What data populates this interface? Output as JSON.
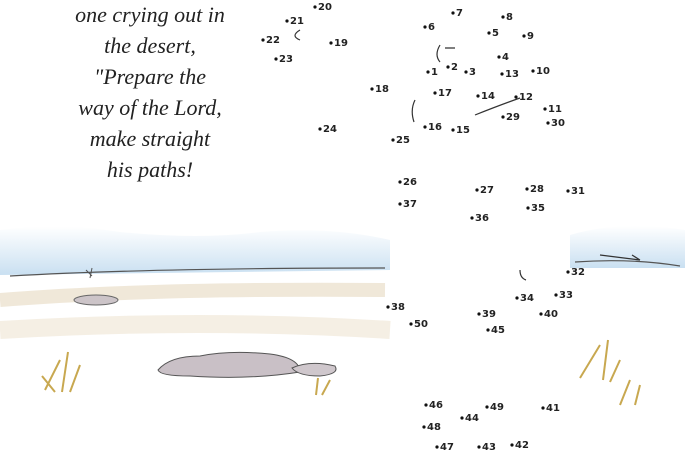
{
  "verse": [
    "one crying out in",
    "the desert,",
    "\"Prepare the",
    "way of the Lord,",
    "make straight",
    "his paths!"
  ],
  "dots": [
    "20",
    "21",
    "22",
    "19",
    "23",
    "18",
    "24",
    "25",
    "16",
    "15",
    "7",
    "8",
    "6",
    "5",
    "9",
    "4",
    "2",
    "1",
    "3",
    "13",
    "10",
    "17",
    "14",
    "12",
    "11",
    "29",
    "30",
    "26",
    "37",
    "27",
    "28",
    "31",
    "35",
    "36",
    "32",
    "34",
    "33",
    "40",
    "38",
    "50",
    "39",
    "45",
    "46",
    "44",
    "49",
    "41",
    "48",
    "47",
    "43",
    "42"
  ]
}
